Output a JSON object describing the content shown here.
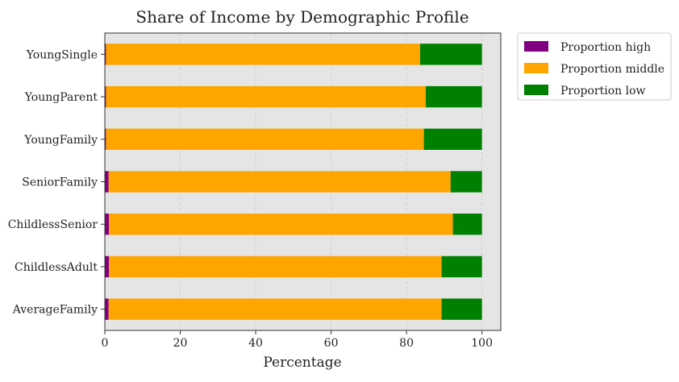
{
  "chart_data": {
    "type": "bar",
    "orientation": "horizontal",
    "stacked": true,
    "title": "Share of Income by Demographic Profile",
    "xlabel": "Percentage",
    "ylabel": "",
    "xlim": [
      0,
      105
    ],
    "xticks": [
      "0",
      "20",
      "40",
      "60",
      "80",
      "100"
    ],
    "grid": true,
    "legend_position": "outside-top-right",
    "categories": [
      "AverageFamily",
      "ChildlessAdult",
      "ChildlessSenior",
      "SeniorFamily",
      "YoungFamily",
      "YoungParent",
      "YoungSingle"
    ],
    "series": [
      {
        "name": "Proportion high",
        "color": "#800080",
        "values": [
          1.0,
          1.1,
          1.1,
          1.0,
          0.3,
          0.3,
          0.3
        ]
      },
      {
        "name": "Proportion middle",
        "color": "#FFA500",
        "values": [
          88.3,
          88.2,
          91.2,
          90.7,
          84.3,
          84.8,
          83.3
        ]
      },
      {
        "name": "Proportion low",
        "color": "#008000",
        "values": [
          10.7,
          10.7,
          7.7,
          8.3,
          15.4,
          14.9,
          16.4
        ]
      }
    ]
  }
}
